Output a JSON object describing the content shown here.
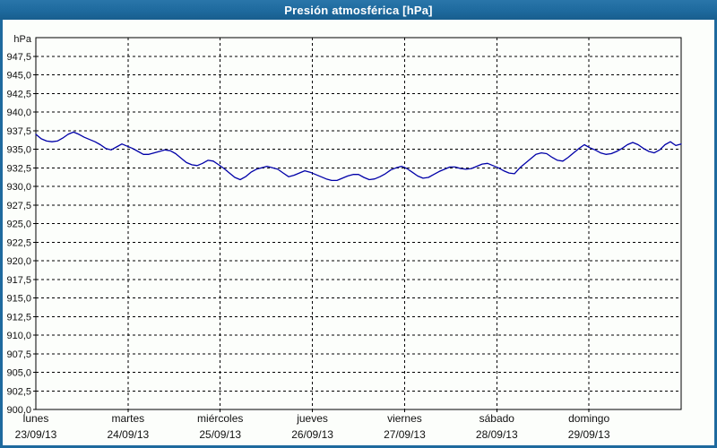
{
  "window": {
    "title": "Presión atmosférica [hPa]"
  },
  "colors": {
    "frame_blue": "#1e6a9e",
    "panel_bg": "#fcfefb",
    "axis_black": "#000000",
    "grid_black": "#000000",
    "series_blue": "#0000a8",
    "title_text": "#ffffff",
    "label_text": "#111111"
  },
  "y_axis": {
    "unit_label": "hPa",
    "min": 900,
    "max": 950,
    "step": 2.5,
    "tick_values": [
      947.5,
      945.0,
      942.5,
      940.0,
      937.5,
      935.0,
      932.5,
      930.0,
      927.5,
      925.0,
      922.5,
      920.0,
      917.5,
      915.0,
      912.5,
      910.0,
      907.5,
      905.0,
      902.5,
      900.0
    ],
    "tick_labels": [
      "947,5",
      "945,0",
      "942,5",
      "940,0",
      "937,5",
      "935,0",
      "932,5",
      "930,0",
      "927,5",
      "925,0",
      "922,5",
      "920,0",
      "917,5",
      "915,0",
      "912,5",
      "910,0",
      "907,5",
      "905,0",
      "902,5",
      "900,0"
    ]
  },
  "x_axis": {
    "days": [
      {
        "name": "lunes",
        "date": "23/09/13"
      },
      {
        "name": "martes",
        "date": "24/09/13"
      },
      {
        "name": "miércoles",
        "date": "25/09/13"
      },
      {
        "name": "jueves",
        "date": "26/09/13"
      },
      {
        "name": "viernes",
        "date": "27/09/13"
      },
      {
        "name": "sábado",
        "date": "28/09/13"
      },
      {
        "name": "domingo",
        "date": "29/09/13"
      }
    ]
  },
  "chart_data": {
    "type": "line",
    "title": "Presión atmosférica [hPa]",
    "ylabel": "hPa",
    "ylim": [
      900,
      950
    ],
    "y_tick_step": 2.5,
    "grid": "dashed, horizontal every 2.5 hPa and vertical at each day start",
    "legend": "none",
    "x_categories": [
      "lunes 23/09/13",
      "martes 24/09/13",
      "miércoles 25/09/13",
      "jueves 26/09/13",
      "viernes 27/09/13",
      "sábado 28/09/13",
      "domingo 29/09/13"
    ],
    "sampling": "121 points evenly spaced from start of lunes 23/09/13 to end of domingo 29/09/13",
    "series": [
      {
        "name": "Presión atmosférica",
        "unit": "hPa",
        "values": [
          937.0,
          936.4,
          936.1,
          936.0,
          936.1,
          936.5,
          937.0,
          937.3,
          937.0,
          936.6,
          936.3,
          936.0,
          935.6,
          935.1,
          934.9,
          935.3,
          935.7,
          935.4,
          935.1,
          934.7,
          934.3,
          934.3,
          934.5,
          934.7,
          934.9,
          934.8,
          934.4,
          933.8,
          933.2,
          932.9,
          932.8,
          933.1,
          933.5,
          933.4,
          932.9,
          932.4,
          931.8,
          931.2,
          930.9,
          931.3,
          931.9,
          932.3,
          932.5,
          932.7,
          932.5,
          932.3,
          931.8,
          931.3,
          931.5,
          931.8,
          932.1,
          931.9,
          931.6,
          931.3,
          931.0,
          930.8,
          930.8,
          931.1,
          931.4,
          931.6,
          931.6,
          931.2,
          930.9,
          931.0,
          931.3,
          931.7,
          932.2,
          932.5,
          932.7,
          932.4,
          931.9,
          931.4,
          931.1,
          931.2,
          931.6,
          932.0,
          932.3,
          932.6,
          932.6,
          932.4,
          932.3,
          932.4,
          932.7,
          933.0,
          933.1,
          932.8,
          932.5,
          932.1,
          931.8,
          931.7,
          932.5,
          933.1,
          933.7,
          934.3,
          934.5,
          934.4,
          933.9,
          933.5,
          933.4,
          933.9,
          934.5,
          935.1,
          935.6,
          935.2,
          934.9,
          934.5,
          934.3,
          934.4,
          934.7,
          935.1,
          935.6,
          935.9,
          935.6,
          935.1,
          934.7,
          934.5,
          934.9,
          935.6,
          936.0,
          935.5,
          935.7
        ]
      }
    ]
  }
}
